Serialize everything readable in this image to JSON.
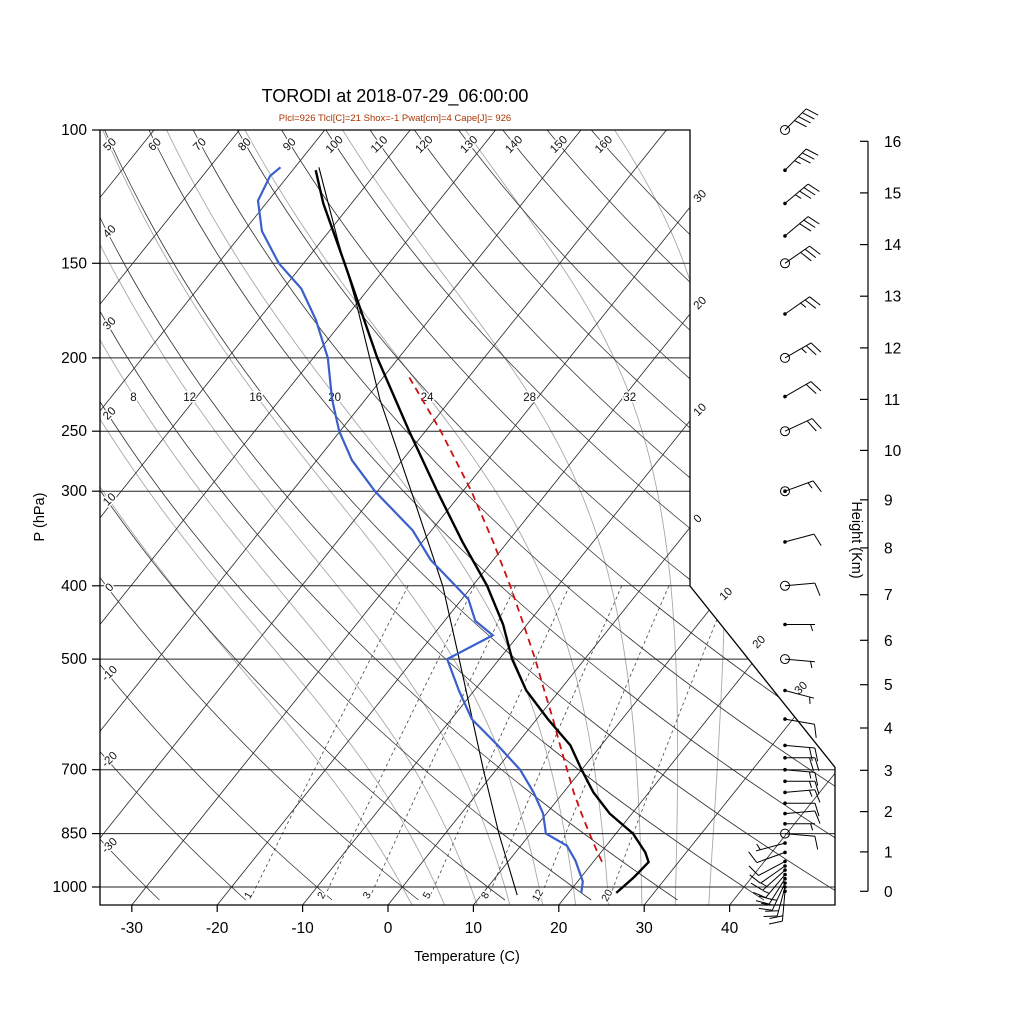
{
  "header": {
    "title": "TORODI at 2018-07-29_06:00:00",
    "subtitle": "Plcl=926 Tlcl[C]=21 Shox=-1 Pwat[cm]=4 Cape[J]= 926",
    "subtitle_color": "#aa3300"
  },
  "axes": {
    "pressure_label": "P (hPa)",
    "pressure_ticks": [
      100,
      150,
      200,
      250,
      300,
      400,
      500,
      700,
      850,
      1000
    ],
    "temperature_label": "Temperature (C)",
    "temperature_ticks": [
      -30,
      -20,
      -10,
      0,
      10,
      20,
      30,
      40
    ],
    "height_label": "Height (Km)",
    "height_ticks": [
      0,
      1,
      2,
      3,
      4,
      5,
      6,
      7,
      8,
      9,
      10,
      11,
      12,
      13,
      14,
      15,
      16
    ]
  },
  "background": {
    "dry_adiabat_top_labels": [
      50,
      60,
      70,
      80,
      90,
      100,
      110,
      120,
      130,
      140,
      150,
      160
    ],
    "dry_adiabat_left_labels": [
      40,
      30,
      20,
      10,
      0,
      -10,
      -20,
      -30
    ],
    "isotherm_right_labels_upper": [
      "30",
      "20",
      "10",
      "0"
    ],
    "isotherm_right_labels_lower": [
      "10",
      "20",
      "30"
    ],
    "moist_adiabat_labels": [
      8,
      12,
      16,
      20,
      24,
      28,
      32
    ],
    "mixing_ratio_labels": [
      1,
      2,
      3,
      5,
      8,
      12,
      20
    ]
  },
  "chart_data": {
    "type": "skewt-logp",
    "title": "TORODI at 2018-07-29_06:00:00",
    "pressure_range_hpa": [
      100,
      1050
    ],
    "temperature_axis_range_c": [
      -35,
      45
    ],
    "temperature_profile": {
      "pressure_hpa": [
        1018,
        970,
        927,
        900,
        850,
        800,
        750,
        700,
        650,
        600,
        550,
        500,
        450,
        400,
        350,
        300,
        250,
        200,
        175,
        150,
        125,
        113
      ],
      "temp_c": [
        25.6,
        26.2,
        26.5,
        25.2,
        22.0,
        17.4,
        13.5,
        10.0,
        6.4,
        1.3,
        -3.9,
        -8.5,
        -12.8,
        -18.3,
        -25.3,
        -33.0,
        -41.9,
        -52.5,
        -58.4,
        -65.2,
        -73.3,
        -77.3
      ]
    },
    "dewpoint_profile": {
      "pressure_hpa": [
        1018,
        983,
        923,
        882,
        850,
        800,
        750,
        700,
        650,
        600,
        550,
        500,
        465,
        445,
        417,
        400,
        370,
        338,
        300,
        273,
        250,
        227,
        200,
        178,
        162,
        150,
        136,
        124,
        115,
        112
      ],
      "temp_c": [
        21.5,
        20.6,
        17.8,
        15.4,
        11.8,
        9.6,
        6.5,
        2.8,
        -2.1,
        -7.6,
        -11.8,
        -16.1,
        -13.0,
        -16.4,
        -19.2,
        -22.0,
        -27.3,
        -32.2,
        -40.3,
        -45.9,
        -50.1,
        -53.9,
        -58.3,
        -63.3,
        -67.9,
        -72.9,
        -77.9,
        -81.2,
        -82.1,
        -81.7
      ]
    },
    "secondary_profile": {
      "pressure_hpa": [
        112,
        140,
        168,
        227,
        308,
        400,
        500,
        700,
        850,
        1025
      ],
      "temp_c": [
        -77.2,
        -68.1,
        -60.4,
        -48.3,
        -34.9,
        -23.5,
        -14.7,
        -1.5,
        6.3,
        14.2
      ]
    },
    "parcel_path": {
      "pressure_hpa": [
        926,
        900,
        850,
        800,
        750,
        700,
        650,
        600,
        550,
        500,
        450,
        400,
        350,
        300,
        250,
        210
      ],
      "temp_c": [
        21.0,
        19.6,
        16.9,
        14.1,
        11.2,
        8.3,
        5.2,
        1.9,
        -1.8,
        -5.8,
        -10.4,
        -15.6,
        -21.7,
        -29.0,
        -38.2,
        -47.5
      ]
    },
    "winds": [
      {
        "p": 1013,
        "kt": 20,
        "dir": 185,
        "m": "d"
      },
      {
        "p": 1000,
        "kt": 20,
        "dir": 195,
        "m": "d"
      },
      {
        "p": 988,
        "kt": 25,
        "dir": 205,
        "m": "d"
      },
      {
        "p": 975,
        "kt": 20,
        "dir": 212,
        "m": "d"
      },
      {
        "p": 963,
        "kt": 15,
        "dir": 220,
        "m": "d"
      },
      {
        "p": 950,
        "kt": 15,
        "dir": 228,
        "m": "d"
      },
      {
        "p": 938,
        "kt": 10,
        "dir": 235,
        "m": "d"
      },
      {
        "p": 925,
        "kt": 10,
        "dir": 242,
        "m": "d"
      },
      {
        "p": 900,
        "kt": 10,
        "dir": 250,
        "m": "d"
      },
      {
        "p": 875,
        "kt": 5,
        "dir": 255,
        "m": "d"
      },
      {
        "p": 850,
        "kt": 10,
        "dir": 95,
        "m": "o"
      },
      {
        "p": 825,
        "kt": 5,
        "dir": 90,
        "m": "d"
      },
      {
        "p": 800,
        "kt": 10,
        "dir": 85,
        "m": "d"
      },
      {
        "p": 775,
        "kt": 10,
        "dir": 90,
        "m": "d"
      },
      {
        "p": 750,
        "kt": 15,
        "dir": 85,
        "m": "d"
      },
      {
        "p": 725,
        "kt": 15,
        "dir": 90,
        "m": "d"
      },
      {
        "p": 700,
        "kt": 15,
        "dir": 95,
        "m": "d"
      },
      {
        "p": 675,
        "kt": 20,
        "dir": 90,
        "m": "d"
      },
      {
        "p": 650,
        "kt": 20,
        "dir": 95,
        "m": "d"
      },
      {
        "p": 600,
        "kt": 10,
        "dir": 100,
        "m": "d"
      },
      {
        "p": 550,
        "kt": 5,
        "dir": 105,
        "m": "d"
      },
      {
        "p": 500,
        "kt": 5,
        "dir": 95,
        "m": "o"
      },
      {
        "p": 450,
        "kt": 5,
        "dir": 90,
        "m": "d"
      },
      {
        "p": 400,
        "kt": 10,
        "dir": 85,
        "m": "o"
      },
      {
        "p": 350,
        "kt": 10,
        "dir": 75,
        "m": "d"
      },
      {
        "p": 300,
        "kt": 15,
        "dir": 70,
        "m": "od"
      },
      {
        "p": 250,
        "kt": 20,
        "dir": 65,
        "m": "o"
      },
      {
        "p": 225,
        "kt": 20,
        "dir": 60,
        "m": "d"
      },
      {
        "p": 200,
        "kt": 25,
        "dir": 60,
        "m": "o"
      },
      {
        "p": 175,
        "kt": 25,
        "dir": 55,
        "m": "d"
      },
      {
        "p": 150,
        "kt": 30,
        "dir": 55,
        "m": "o"
      },
      {
        "p": 138,
        "kt": 30,
        "dir": 50,
        "m": "d"
      },
      {
        "p": 125,
        "kt": 35,
        "dir": 50,
        "m": "d"
      },
      {
        "p": 113,
        "kt": 35,
        "dir": 45,
        "m": "d"
      },
      {
        "p": 100,
        "kt": 40,
        "dir": 45,
        "m": "o"
      }
    ],
    "colors": {
      "temperature": "#000000",
      "dewpoint": "#3a5fcd",
      "parcel": "#cc1111",
      "secondary": "#000000"
    }
  }
}
